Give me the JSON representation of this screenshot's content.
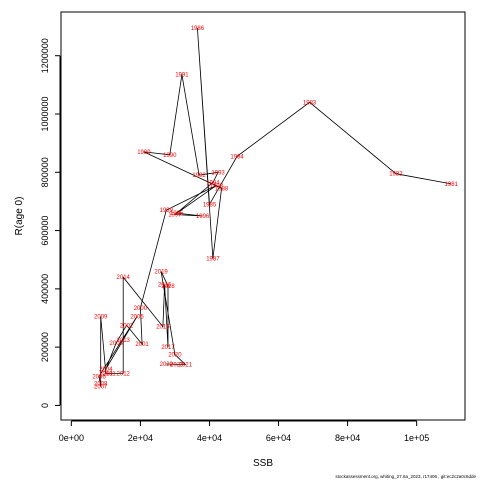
{
  "chart_data": {
    "type": "line",
    "xlabel": "SSB",
    "ylabel": "R(age 0)",
    "xlim": [
      -3000,
      114000
    ],
    "ylim": [
      -50000,
      1350000
    ],
    "x_ticks": [
      0,
      20000,
      40000,
      60000,
      80000,
      100000
    ],
    "x_tick_labels": [
      "0e+00",
      "2e+04",
      "4e+04",
      "6e+04",
      "8e+04",
      "1e+05"
    ],
    "y_ticks": [
      0,
      200000,
      400000,
      600000,
      800000,
      1000000,
      1200000
    ],
    "y_tick_labels": [
      "0",
      "200000",
      "400000",
      "600000",
      "800000",
      "1000000",
      "1200000"
    ],
    "grid": false,
    "line_color": "#000000",
    "label_color": "#ff0000",
    "points": [
      {
        "year": "1981",
        "x": 110000,
        "y": 760000
      },
      {
        "year": "1982",
        "x": 94000,
        "y": 795000
      },
      {
        "year": "1983",
        "x": 69000,
        "y": 1040000
      },
      {
        "year": "1984",
        "x": 48000,
        "y": 855000
      },
      {
        "year": "1985",
        "x": 40000,
        "y": 690000
      },
      {
        "year": "1986",
        "x": 36500,
        "y": 1295000
      },
      {
        "year": "1987",
        "x": 41000,
        "y": 505000
      },
      {
        "year": "1988",
        "x": 43500,
        "y": 745000
      },
      {
        "year": "1989",
        "x": 21000,
        "y": 870000
      },
      {
        "year": "1990",
        "x": 28500,
        "y": 860000
      },
      {
        "year": "1991",
        "x": 32000,
        "y": 1135000
      },
      {
        "year": "1992",
        "x": 37000,
        "y": 790000
      },
      {
        "year": "1993",
        "x": 42500,
        "y": 800000
      },
      {
        "year": "1994",
        "x": 41000,
        "y": 765000
      },
      {
        "year": "1995",
        "x": 30500,
        "y": 660000
      },
      {
        "year": "1996",
        "x": 38000,
        "y": 650000
      },
      {
        "year": "1997",
        "x": 30000,
        "y": 655000
      },
      {
        "year": "1998",
        "x": 42000,
        "y": 755000
      },
      {
        "year": "1999",
        "x": 27500,
        "y": 670000
      },
      {
        "year": "2000",
        "x": 20000,
        "y": 335000
      },
      {
        "year": "2001",
        "x": 20500,
        "y": 210000
      },
      {
        "year": "2002",
        "x": 16000,
        "y": 275000
      },
      {
        "year": "2003",
        "x": 13000,
        "y": 215000
      },
      {
        "year": "2004",
        "x": 10000,
        "y": 125000
      },
      {
        "year": "2005",
        "x": 19000,
        "y": 305000
      },
      {
        "year": "2006",
        "x": 8000,
        "y": 100000
      },
      {
        "year": "2007",
        "x": 8500,
        "y": 65000
      },
      {
        "year": "2008",
        "x": 8500,
        "y": 75000
      },
      {
        "year": "2009",
        "x": 8500,
        "y": 305000
      },
      {
        "year": "2010",
        "x": 10000,
        "y": 110000
      },
      {
        "year": "2011",
        "x": 11000,
        "y": 110000
      },
      {
        "year": "2012",
        "x": 15000,
        "y": 110000
      },
      {
        "year": "2013",
        "x": 15000,
        "y": 225000
      },
      {
        "year": "2014",
        "x": 15000,
        "y": 440000
      },
      {
        "year": "2015",
        "x": 26500,
        "y": 270000
      },
      {
        "year": "2016",
        "x": 27000,
        "y": 415000
      },
      {
        "year": "2017",
        "x": 28000,
        "y": 200000
      },
      {
        "year": "2018",
        "x": 28000,
        "y": 410000
      },
      {
        "year": "2019",
        "x": 26000,
        "y": 460000
      },
      {
        "year": "2020",
        "x": 30000,
        "y": 175000
      },
      {
        "year": "2021",
        "x": 33000,
        "y": 140000
      },
      {
        "year": "2022",
        "x": 27500,
        "y": 142000
      },
      {
        "year": "2023",
        "x": 30500,
        "y": 141000
      }
    ]
  },
  "footer_text": "stockassessment.org, whiting_27.6a_2023, r17406 , git:ec2c2a0c6dde"
}
